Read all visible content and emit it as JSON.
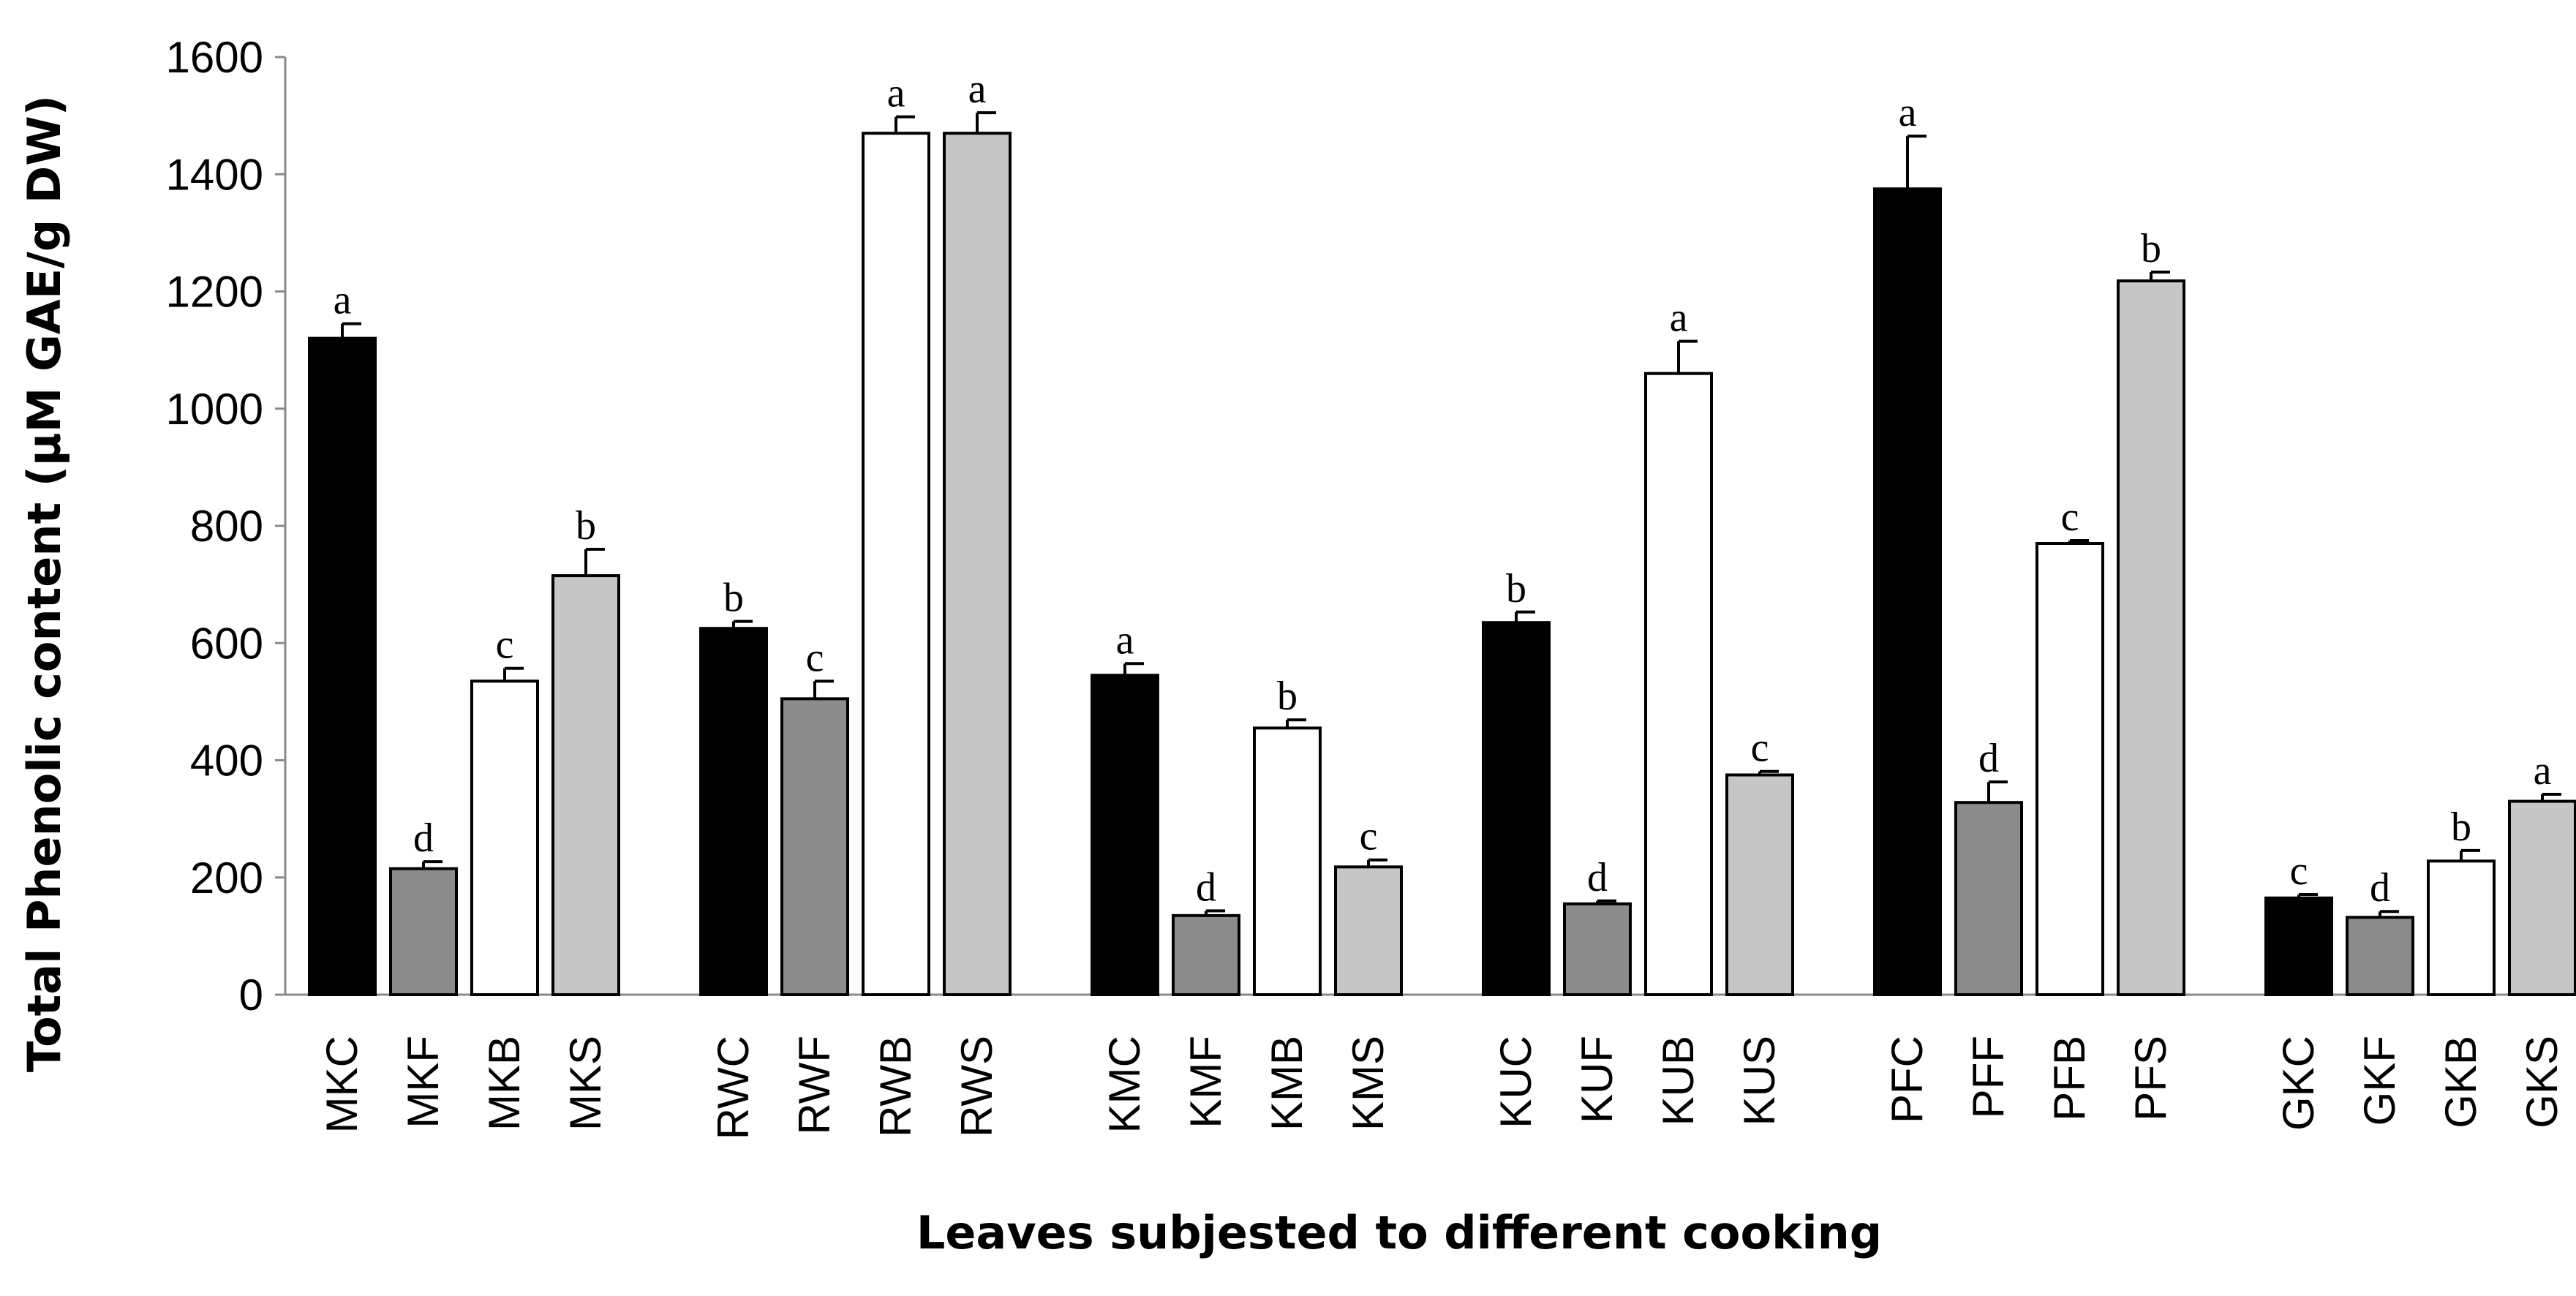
{
  "chart_data": {
    "type": "bar",
    "title": "",
    "xlabel": "Leaves subjested to different cooking",
    "ylabel": "Total Phenolic content (µM GAE/g DW)",
    "ylim": [
      0,
      1600
    ],
    "yticks": [
      0,
      200,
      400,
      600,
      800,
      1000,
      1200,
      1400,
      1600
    ],
    "grid": false,
    "legend": "none",
    "fill_cycle": [
      "#000000",
      "#8c8c8c",
      "#ffffff",
      "#c6c6c6"
    ],
    "groups": [
      {
        "bars": [
          {
            "label": "MKC",
            "value": 1120,
            "error": 25,
            "letter": "a"
          },
          {
            "label": "MKF",
            "value": 215,
            "error": 12,
            "letter": "d"
          },
          {
            "label": "MKB",
            "value": 535,
            "error": 22,
            "letter": "c"
          },
          {
            "label": "MKS",
            "value": 715,
            "error": 45,
            "letter": "b"
          }
        ]
      },
      {
        "bars": [
          {
            "label": "RWC",
            "value": 625,
            "error": 12,
            "letter": "b"
          },
          {
            "label": "RWF",
            "value": 505,
            "error": 30,
            "letter": "c"
          },
          {
            "label": "RWB",
            "value": 1470,
            "error": 28,
            "letter": "a"
          },
          {
            "label": "RWS",
            "value": 1470,
            "error": 35,
            "letter": "a"
          }
        ]
      },
      {
        "bars": [
          {
            "label": "KMC",
            "value": 545,
            "error": 20,
            "letter": "a"
          },
          {
            "label": "KMF",
            "value": 135,
            "error": 8,
            "letter": "d"
          },
          {
            "label": "KMB",
            "value": 455,
            "error": 14,
            "letter": "b"
          },
          {
            "label": "KMS",
            "value": 218,
            "error": 12,
            "letter": "c"
          }
        ]
      },
      {
        "bars": [
          {
            "label": "KUC",
            "value": 635,
            "error": 18,
            "letter": "b"
          },
          {
            "label": "KUF",
            "value": 155,
            "error": 5,
            "letter": "d"
          },
          {
            "label": "KUB",
            "value": 1060,
            "error": 55,
            "letter": "a"
          },
          {
            "label": "KUS",
            "value": 375,
            "error": 6,
            "letter": "c"
          }
        ]
      },
      {
        "bars": [
          {
            "label": "PFC",
            "value": 1375,
            "error": 90,
            "letter": "a"
          },
          {
            "label": "PFF",
            "value": 328,
            "error": 35,
            "letter": "d"
          },
          {
            "label": "PFB",
            "value": 770,
            "error": 5,
            "letter": "c"
          },
          {
            "label": "PFS",
            "value": 1218,
            "error": 15,
            "letter": "b"
          }
        ]
      },
      {
        "bars": [
          {
            "label": "GKC",
            "value": 165,
            "error": 6,
            "letter": "c"
          },
          {
            "label": "GKF",
            "value": 132,
            "error": 10,
            "letter": "d"
          },
          {
            "label": "GKB",
            "value": 228,
            "error": 18,
            "letter": "b"
          },
          {
            "label": "GKS",
            "value": 330,
            "error": 12,
            "letter": "a"
          }
        ]
      }
    ]
  }
}
